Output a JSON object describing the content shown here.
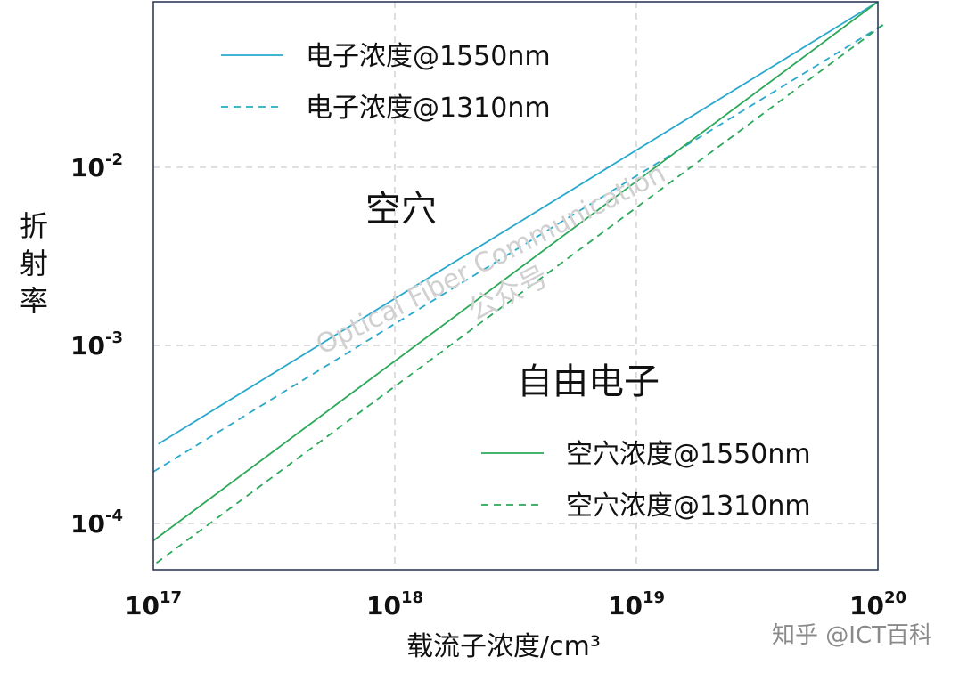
{
  "chart_data": {
    "type": "line",
    "xscale": "log",
    "yscale": "log",
    "xlim": [
      1e+17,
      1e+20
    ],
    "ylim": [
      5.5e-05,
      0.085
    ],
    "grid": true,
    "xlabel": "载流子浓度/cm³",
    "ylabel": "折射率",
    "x_ticks": [
      {
        "base": "10",
        "exp": "17"
      },
      {
        "base": "10",
        "exp": "18"
      },
      {
        "base": "10",
        "exp": "19"
      },
      {
        "base": "10",
        "exp": "20"
      }
    ],
    "y_ticks": [
      {
        "base": "10",
        "exp": "-4"
      },
      {
        "base": "10",
        "exp": "-3"
      },
      {
        "base": "10",
        "exp": "-2"
      }
    ],
    "series": [
      {
        "name": "电子浓度@1550nm",
        "color": "#2aa9cd",
        "dash": "solid",
        "x": [
          1.05e+17,
          1e+20
        ],
        "y": [
          0.00028,
          0.085
        ]
      },
      {
        "name": "电子浓度@1310nm",
        "color": "#2aa9cd",
        "dash": "dashed",
        "x": [
          1e+17,
          1.05e+20
        ],
        "y": [
          0.000195,
          0.063
        ]
      },
      {
        "name": "空穴浓度@1550nm",
        "color": "#2ca85a",
        "dash": "solid",
        "x": [
          1e+17,
          1e+20
        ],
        "y": [
          8e-05,
          0.085
        ]
      },
      {
        "name": "空穴浓度@1310nm",
        "color": "#2ca85a",
        "dash": "dashed",
        "x": [
          1.03e+17,
          1.05e+20
        ],
        "y": [
          6e-05,
          0.063
        ]
      }
    ],
    "annotations": [
      "空穴",
      "自由电子"
    ]
  },
  "watermark": {
    "line1": "Optical Fiber Communication",
    "line2": "公众号"
  },
  "credit": "知乎 @ICT百科"
}
